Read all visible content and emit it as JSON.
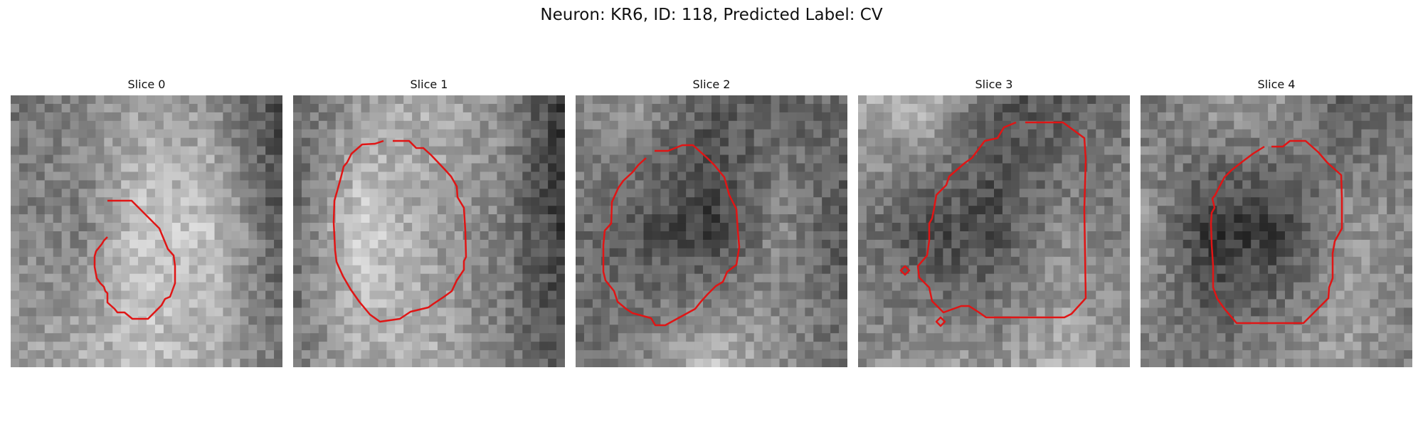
{
  "figure": {
    "suptitle": "Neuron: KR6, ID: 118, Predicted Label: CV",
    "contour_color": "#e01515",
    "panels": [
      {
        "title": "Slice 0",
        "seed": 11,
        "darkness": [
          [
            0.58,
            0.48,
            0.34,
            0.42,
            0.85
          ],
          [
            0.48,
            0.52,
            0.1,
            0.18,
            0.75
          ],
          [
            0.36,
            0.28,
            0.18,
            0.3,
            0.55
          ]
        ]
      },
      {
        "title": "Slice 1",
        "seed": 23,
        "darkness": [
          [
            0.65,
            0.4,
            0.25,
            0.4,
            0.9
          ],
          [
            0.65,
            0.05,
            0.35,
            0.5,
            0.9
          ],
          [
            0.55,
            0.3,
            0.25,
            0.5,
            0.75
          ]
        ]
      },
      {
        "title": "Slice 2",
        "seed": 37,
        "darkness": [
          [
            0.45,
            0.4,
            0.7,
            0.7,
            0.6
          ],
          [
            0.6,
            0.75,
            0.88,
            0.45,
            0.75
          ],
          [
            0.65,
            0.45,
            0.15,
            0.45,
            0.6
          ]
        ]
      },
      {
        "title": "Slice 3",
        "seed": 41,
        "darkness": [
          [
            0.3,
            0.2,
            0.7,
            0.75,
            0.55
          ],
          [
            0.55,
            0.8,
            0.8,
            0.45,
            0.55
          ],
          [
            0.45,
            0.35,
            0.4,
            0.25,
            0.4
          ]
        ]
      },
      {
        "title": "Slice 4",
        "seed": 53,
        "darkness": [
          [
            0.6,
            0.35,
            0.35,
            0.7,
            0.65
          ],
          [
            0.35,
            0.9,
            0.88,
            0.4,
            0.45
          ],
          [
            0.5,
            0.55,
            0.4,
            0.35,
            0.55
          ]
        ]
      }
    ]
  }
}
